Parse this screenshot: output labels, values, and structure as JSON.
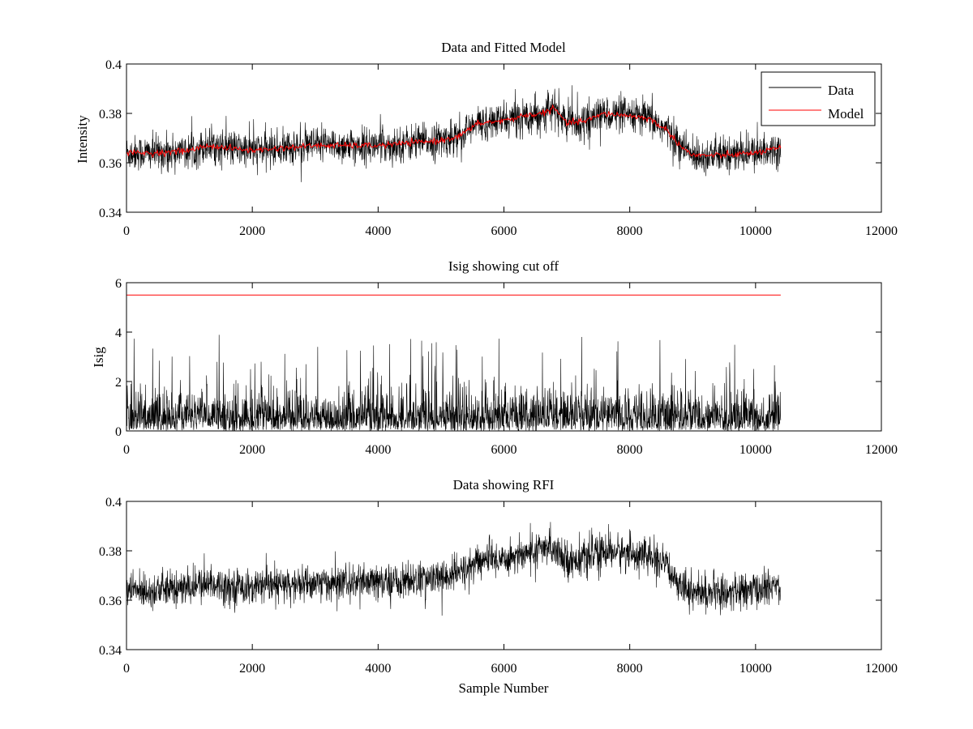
{
  "chart_data": [
    {
      "type": "line",
      "title": "Data and Fitted Model",
      "xlabel": "",
      "ylabel": "Intensity",
      "xlim": [
        0,
        12000
      ],
      "ylim": [
        0.34,
        0.4
      ],
      "xticks": [
        "0",
        "2000",
        "4000",
        "6000",
        "8000",
        "10000",
        "12000"
      ],
      "yticks": [
        "0.34",
        "0.36",
        "0.38",
        "0.4"
      ],
      "legend": {
        "placement": "top-right",
        "entries": [
          "Data",
          "Model"
        ]
      },
      "series": [
        {
          "name": "Data",
          "color": "#000000",
          "style": "noisy",
          "noise_amplitude": 0.0065,
          "x": [
            0,
            500,
            1000,
            1300,
            1600,
            2000,
            2500,
            3000,
            3500,
            4000,
            4500,
            5000,
            5300,
            5600,
            6000,
            6300,
            6600,
            6800,
            7000,
            7300,
            7600,
            8000,
            8300,
            8600,
            8800,
            9000,
            9500,
            10000,
            10400
          ],
          "y": [
            0.364,
            0.364,
            0.365,
            0.367,
            0.366,
            0.365,
            0.366,
            0.367,
            0.367,
            0.367,
            0.368,
            0.369,
            0.371,
            0.376,
            0.377,
            0.379,
            0.38,
            0.382,
            0.376,
            0.377,
            0.38,
            0.379,
            0.378,
            0.373,
            0.367,
            0.363,
            0.363,
            0.364,
            0.366
          ]
        },
        {
          "name": "Model",
          "color": "#ff0000",
          "style": "smooth",
          "x": [
            0,
            500,
            1000,
            1300,
            1600,
            2000,
            2500,
            3000,
            3500,
            4000,
            4500,
            5000,
            5300,
            5600,
            6000,
            6300,
            6600,
            6800,
            7000,
            7300,
            7600,
            8000,
            8300,
            8600,
            8800,
            9000,
            9500,
            10000,
            10400
          ],
          "y": [
            0.364,
            0.364,
            0.365,
            0.367,
            0.366,
            0.365,
            0.366,
            0.367,
            0.367,
            0.367,
            0.368,
            0.369,
            0.371,
            0.376,
            0.377,
            0.379,
            0.38,
            0.382,
            0.376,
            0.377,
            0.38,
            0.379,
            0.378,
            0.373,
            0.367,
            0.363,
            0.363,
            0.364,
            0.366
          ]
        }
      ]
    },
    {
      "type": "line",
      "title": "Isig showing cut off",
      "xlabel": "",
      "ylabel": "Isig",
      "xlim": [
        0,
        12000
      ],
      "ylim": [
        0,
        6
      ],
      "xticks": [
        "0",
        "2000",
        "4000",
        "6000",
        "8000",
        "10000",
        "12000"
      ],
      "yticks": [
        "0",
        "2",
        "4",
        "6"
      ],
      "series": [
        {
          "color": "#000000",
          "style": "abs-noise",
          "x": [
            0,
            10400
          ],
          "noise_scale": 0.8,
          "max_value": 3.9
        },
        {
          "color": "#ff0000",
          "style": "flat",
          "x": [
            0,
            10400
          ],
          "y": [
            5.5,
            5.5
          ]
        }
      ]
    },
    {
      "type": "line",
      "title": "Data showing RFI",
      "xlabel": "Sample Number",
      "ylabel": "",
      "xlim": [
        0,
        12000
      ],
      "ylim": [
        0.34,
        0.4
      ],
      "xticks": [
        "0",
        "2000",
        "4000",
        "6000",
        "8000",
        "10000",
        "12000"
      ],
      "yticks": [
        "0.34",
        "0.36",
        "0.38",
        "0.4"
      ],
      "series": [
        {
          "color": "#000000",
          "style": "noisy",
          "noise_amplitude": 0.0065,
          "x": [
            0,
            500,
            1000,
            1300,
            1600,
            2000,
            2500,
            3000,
            3500,
            4000,
            4500,
            5000,
            5300,
            5600,
            6000,
            6300,
            6600,
            6800,
            7000,
            7300,
            7600,
            8000,
            8300,
            8600,
            8800,
            9000,
            9500,
            10000,
            10400
          ],
          "y": [
            0.364,
            0.364,
            0.365,
            0.367,
            0.366,
            0.365,
            0.366,
            0.367,
            0.367,
            0.367,
            0.368,
            0.369,
            0.371,
            0.376,
            0.377,
            0.379,
            0.38,
            0.382,
            0.376,
            0.377,
            0.38,
            0.379,
            0.378,
            0.373,
            0.367,
            0.363,
            0.363,
            0.364,
            0.366
          ]
        }
      ]
    }
  ]
}
